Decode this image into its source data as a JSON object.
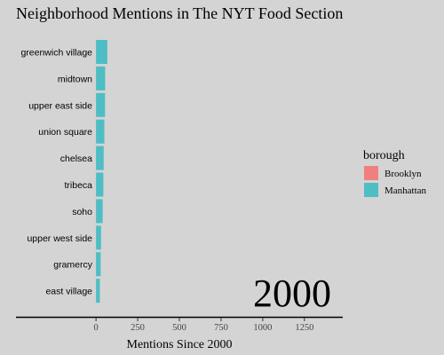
{
  "chart_data": {
    "type": "bar",
    "orientation": "horizontal",
    "title": "Neighborhood Mentions in The NYT Food Section",
    "xlabel": "Mentions Since 2000",
    "ylabel": "",
    "xlim": [
      -480,
      1480
    ],
    "x_ticks": [
      0,
      250,
      500,
      750,
      1000,
      1250
    ],
    "annotation": "2000",
    "grid": false,
    "legend": {
      "title": "borough",
      "position": "right",
      "entries": [
        {
          "name": "Brooklyn",
          "color": "#f07f7f"
        },
        {
          "name": "Manhattan",
          "color": "#4fbdc4"
        }
      ]
    },
    "categories": [
      "greenwich village",
      "midtown",
      "upper east side",
      "union square",
      "chelsea",
      "tribeca",
      "soho",
      "upper west side",
      "gramercy",
      "east village"
    ],
    "values": [
      68,
      55,
      54,
      50,
      46,
      44,
      40,
      30,
      28,
      23
    ],
    "borough": [
      "Manhattan",
      "Manhattan",
      "Manhattan",
      "Manhattan",
      "Manhattan",
      "Manhattan",
      "Manhattan",
      "Manhattan",
      "Manhattan",
      "Manhattan"
    ]
  }
}
